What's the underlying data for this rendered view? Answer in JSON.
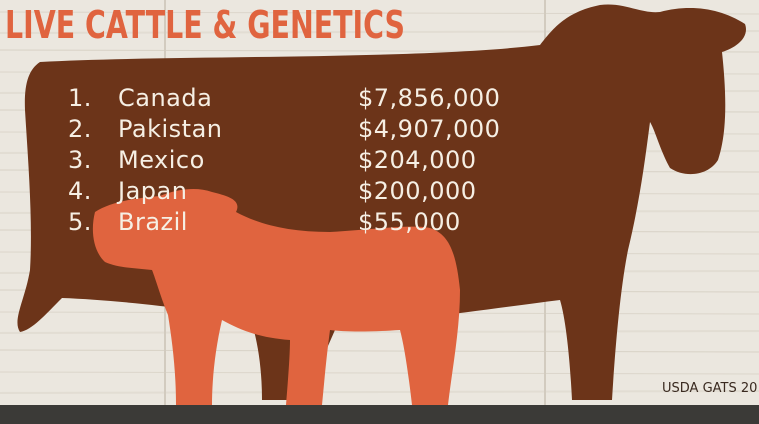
{
  "header": {
    "title": "LIVE CATTLE & GENETICS"
  },
  "list": {
    "items": [
      {
        "rank": "1.",
        "country": "Canada",
        "value": "$7,856,000"
      },
      {
        "rank": "2.",
        "country": "Pakistan",
        "value": "$4,907,000"
      },
      {
        "rank": "3.",
        "country": "Mexico",
        "value": "$204,000"
      },
      {
        "rank": "4.",
        "country": "Japan",
        "value": "$200,000"
      },
      {
        "rank": "5.",
        "country": "Brazil",
        "value": "$55,000"
      }
    ]
  },
  "footer": {
    "source": "USDA GATS 20"
  }
}
